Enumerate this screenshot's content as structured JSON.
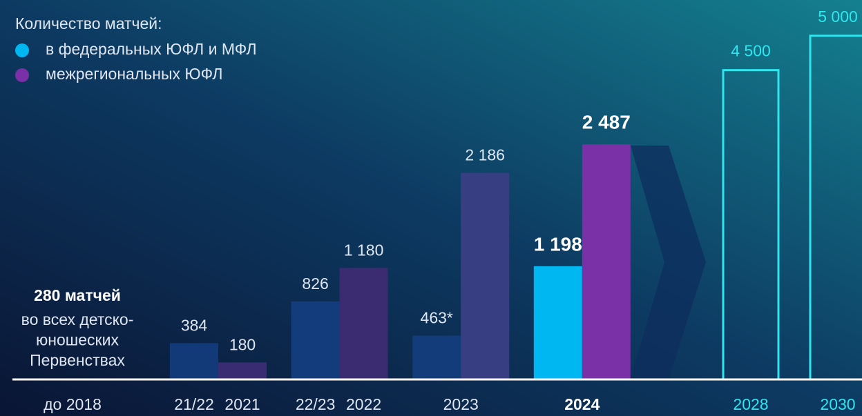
{
  "chart_data": {
    "type": "bar",
    "legend_title": "Количество матчей:",
    "ylim": [
      0,
      4000
    ],
    "y2lim": [
      0,
      5500
    ],
    "baseline_annotation": {
      "category": "до 2018",
      "title": "280 матчей",
      "lines": [
        "во всех детско-",
        "юношеских",
        "Первенствах"
      ]
    },
    "categories": [
      [
        "21/22",
        "2021"
      ],
      [
        "22/23",
        "2022"
      ],
      [
        "2023"
      ],
      [
        "2024"
      ]
    ],
    "series": [
      {
        "name": "в федеральных ЮФЛ и МФЛ",
        "color": "#00b7f1",
        "colors": [
          "#133a78",
          "#133c7c",
          "#123c7a",
          "#00b7f1"
        ],
        "values": [
          384,
          826,
          463,
          1198
        ],
        "value_labels": [
          "384",
          "826",
          "463*",
          "1 198"
        ]
      },
      {
        "name": "межрегиональных ЮФЛ",
        "color": "#7a30a6",
        "colors": [
          "#3a2c72",
          "#3b2c72",
          "#383e82",
          "#7a30a6"
        ],
        "values": [
          180,
          1180,
          2186,
          2487
        ],
        "value_labels": [
          "180",
          "1 180",
          "2 186",
          "2 487"
        ]
      }
    ],
    "targets": {
      "axis": "y2",
      "color": "#2fe6ee",
      "categories": [
        "2028",
        "2030"
      ],
      "values": [
        4500,
        5000
      ],
      "value_labels": [
        "4 500",
        "5 000"
      ]
    }
  }
}
